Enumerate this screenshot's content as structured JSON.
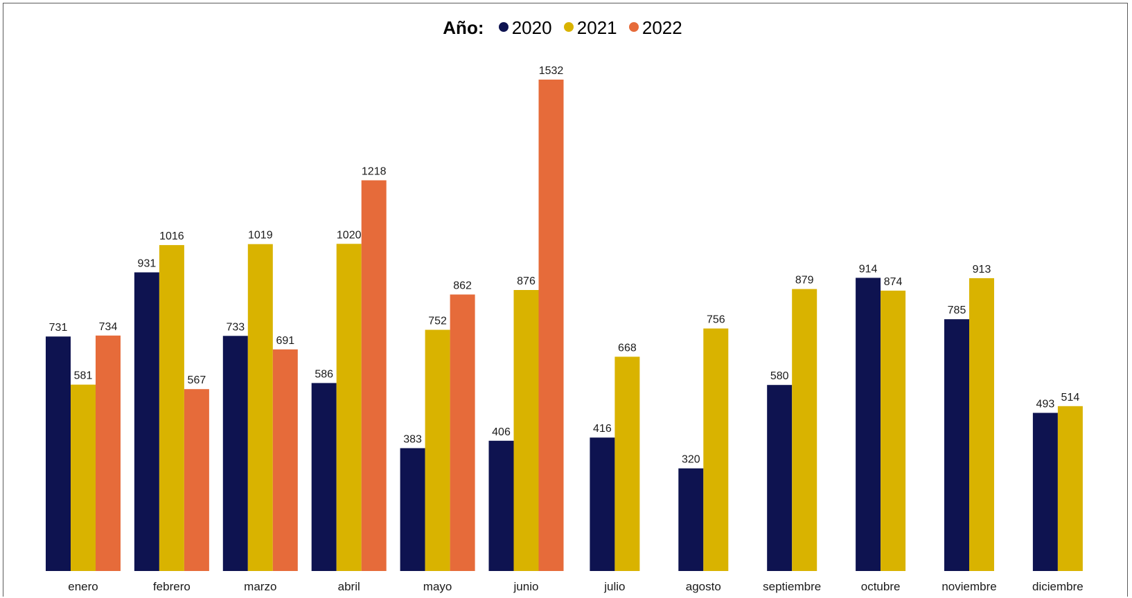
{
  "chart_data": {
    "type": "bar",
    "legend_title": "Año:",
    "legend_position": "top-center",
    "grid": false,
    "ylim": [
      0,
      1600
    ],
    "categories": [
      "enero",
      "febrero",
      "marzo",
      "abril",
      "mayo",
      "junio",
      "julio",
      "agosto",
      "septiembre",
      "octubre",
      "noviembre",
      "diciembre"
    ],
    "series": [
      {
        "name": "2020",
        "color": "#0e1350",
        "values": [
          731,
          931,
          733,
          586,
          383,
          406,
          416,
          320,
          580,
          914,
          785,
          493
        ]
      },
      {
        "name": "2021",
        "color": "#d9b300",
        "values": [
          581,
          1016,
          1019,
          1020,
          752,
          876,
          668,
          756,
          879,
          874,
          913,
          514
        ]
      },
      {
        "name": "2022",
        "color": "#e66b3a",
        "values": [
          734,
          567,
          691,
          1218,
          862,
          1532,
          null,
          null,
          null,
          null,
          null,
          null
        ]
      }
    ]
  }
}
